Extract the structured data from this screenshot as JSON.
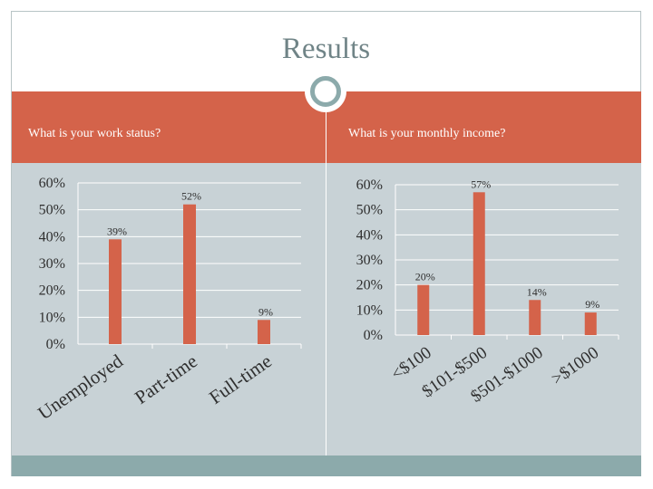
{
  "title": "Results",
  "colors": {
    "accent": "#d4634a",
    "panel": "#c8d2d6",
    "title": "#708487",
    "footer": "#8caaab",
    "bar": "#d4634a"
  },
  "chart_data": [
    {
      "type": "bar",
      "question": "What is your work status?",
      "categories": [
        "Unemployed",
        "Part-time",
        "Full-time"
      ],
      "values": [
        39,
        52,
        9
      ],
      "value_labels": [
        "39%",
        "52%",
        "9%"
      ],
      "yticks": [
        "0%",
        "10%",
        "20%",
        "30%",
        "40%",
        "50%",
        "60%"
      ],
      "ylim": [
        0,
        60
      ],
      "grid": true,
      "legend": "none"
    },
    {
      "type": "bar",
      "question": "What is your monthly income?",
      "categories": [
        "<$100",
        "$101-$500",
        "$501-$1000",
        ">$1000"
      ],
      "values": [
        20,
        57,
        14,
        9
      ],
      "value_labels": [
        "20%",
        "57%",
        "14%",
        "9%"
      ],
      "yticks": [
        "0%",
        "10%",
        "20%",
        "30%",
        "40%",
        "50%",
        "60%"
      ],
      "ylim": [
        0,
        60
      ],
      "grid": true,
      "legend": "none"
    }
  ]
}
